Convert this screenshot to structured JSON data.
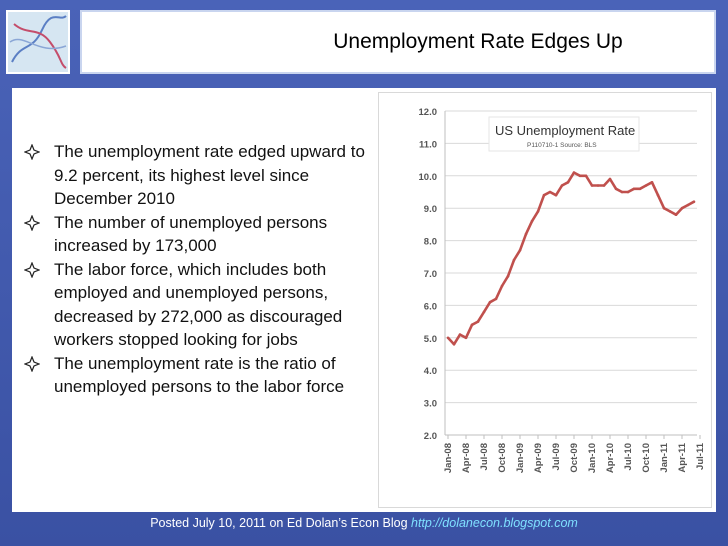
{
  "slide": {
    "title": "Unemployment Rate Edges Up",
    "bullets": [
      "The unemployment rate edged upward to 9.2 percent, its highest level since December 2010",
      "The number of unemployed persons increased by 173,000",
      "The labor force, which includes both employed and unemployed persons, decreased by 272,000 as discouraged workers stopped looking for jobs",
      "The unemployment rate is the ratio of unemployed persons to the labor force"
    ],
    "caption_text": "Posted July 10, 2011 on Ed Dolan’s Econ Blog",
    "caption_link": "http://dolanecon.blogspot.com"
  },
  "colors": {
    "background": "#3b54a8",
    "line": "#c0504d",
    "link": "#7fe0ff"
  },
  "chart_data": {
    "type": "line",
    "title": "US Unemployment Rate",
    "subtitle": "P110710-1 Source: BLS",
    "ylim": [
      2.0,
      12.0
    ],
    "yticks": [
      "2.0",
      "3.0",
      "4.0",
      "5.0",
      "6.0",
      "7.0",
      "8.0",
      "9.0",
      "10.0",
      "11.0",
      "12.0"
    ],
    "xticks": [
      "Jan-08",
      "Apr-08",
      "Jul-08",
      "Oct-08",
      "Jan-09",
      "Apr-09",
      "Jul-09",
      "Oct-09",
      "Jan-10",
      "Apr-10",
      "Jul-10",
      "Oct-10",
      "Jan-11",
      "Apr-11",
      "Jul-11"
    ],
    "grid": true,
    "series": [
      {
        "values": [
          5.0,
          4.8,
          5.1,
          5.0,
          5.4,
          5.5,
          5.8,
          6.1,
          6.2,
          6.6,
          6.9,
          7.4,
          7.7,
          8.2,
          8.6,
          8.9,
          9.4,
          9.5,
          9.4,
          9.7,
          9.8,
          10.1,
          10.0,
          10.0,
          9.7,
          9.7,
          9.7,
          9.9,
          9.6,
          9.5,
          9.5,
          9.6,
          9.6,
          9.7,
          9.8,
          9.4,
          9.0,
          8.9,
          8.8,
          9.0,
          9.1,
          9.2
        ]
      }
    ]
  }
}
